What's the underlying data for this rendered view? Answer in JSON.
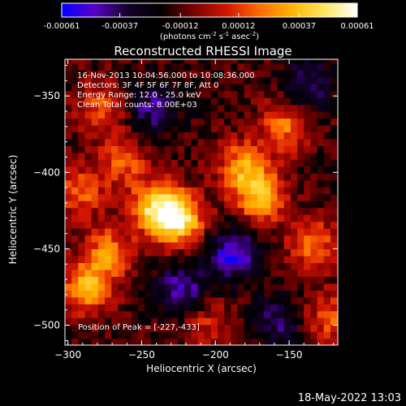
{
  "colorbar": {
    "tick_labels": [
      "-0.00061",
      "-0.00037",
      "-0.00012",
      "0.00012",
      "0.00037",
      "0.00061"
    ],
    "tick_values": [
      -0.00061,
      -0.00037,
      -0.00012,
      0.00012,
      0.00037,
      0.00061
    ],
    "range": [
      -0.00061,
      0.00061
    ],
    "unit_label_1": "(photons cm",
    "unit_sup_1": "-2",
    "unit_label_2": " s",
    "unit_sup_2": "-1",
    "unit_label_3": " asec",
    "unit_sup_3": "-2",
    "unit_label_4": ")",
    "colors": [
      "#0000ff",
      "#5a00c8",
      "#14002a",
      "#000000",
      "#7a0000",
      "#d01400",
      "#ff6a00",
      "#ffb400",
      "#ffe860",
      "#ffffff"
    ]
  },
  "chart_data": {
    "type": "heatmap",
    "title": "Reconstructed RHESSI Image",
    "xlabel": "Heliocentric X (arcsec)",
    "ylabel": "Heliocentric Y (arcsec)",
    "xlim": [
      -302,
      -117
    ],
    "ylim": [
      -513,
      -326
    ],
    "xticks": [
      -300,
      -250,
      -200,
      -150
    ],
    "yticks": [
      -350,
      -400,
      -450,
      -500
    ],
    "xtick_labels": [
      "−300",
      "−250",
      "−200",
      "−150"
    ],
    "ytick_labels": [
      "−350",
      "−400",
      "−450",
      "−500"
    ],
    "colorscale": "rhessi-blue-black-red-yellow-white",
    "peak": [
      -227,
      -433
    ],
    "info_lines": [
      "16-Nov-2013 10:04:56.000 to 10:08:36.000",
      "Detectors: 3F 4F 5F 6F 7F 8F, Att 0",
      "Energy Range: 12.0 - 25.0 keV",
      "Clean    Total counts: 8.00E+03"
    ],
    "peak_label": "Position of Peak = [-227,-433]",
    "bright_features": [
      {
        "x": -227,
        "y": -433,
        "value": 0.00061
      },
      {
        "x": -243,
        "y": -425,
        "value": 0.00052
      },
      {
        "x": -172,
        "y": -418,
        "value": 0.00048
      },
      {
        "x": -184,
        "y": -398,
        "value": 0.0004
      },
      {
        "x": -155,
        "y": -372,
        "value": 0.00036
      },
      {
        "x": -290,
        "y": -478,
        "value": 0.00045
      },
      {
        "x": -275,
        "y": -455,
        "value": 0.00038
      },
      {
        "x": -280,
        "y": -360,
        "value": 0.00028
      },
      {
        "x": -295,
        "y": -415,
        "value": 0.00032
      },
      {
        "x": -137,
        "y": -448,
        "value": 0.00034
      },
      {
        "x": -125,
        "y": -497,
        "value": 0.0003
      },
      {
        "x": -210,
        "y": -500,
        "value": 0.00022
      },
      {
        "x": -265,
        "y": -395,
        "value": 0.0003
      }
    ],
    "negative_features": [
      {
        "x": -190,
        "y": -455,
        "value": -0.00042
      },
      {
        "x": -225,
        "y": -480,
        "value": -0.00035
      },
      {
        "x": -245,
        "y": -360,
        "value": -0.0003
      },
      {
        "x": -140,
        "y": -345,
        "value": -0.00028
      },
      {
        "x": -160,
        "y": -500,
        "value": -0.00025
      }
    ]
  },
  "footer": {
    "timestamp": "18-May-2022 13:03"
  }
}
